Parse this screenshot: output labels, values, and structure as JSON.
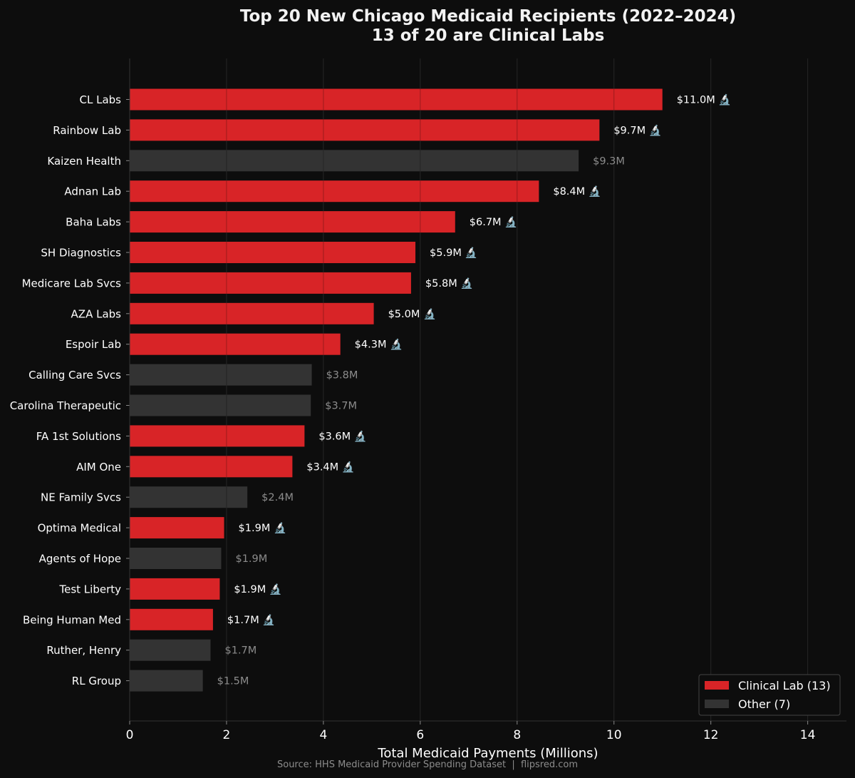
{
  "chart_data": {
    "type": "bar",
    "orientation": "horizontal",
    "title": [
      "Top 20 New Chicago Medicaid Recipients (2022–2024)",
      "13 of 20 are Clinical Labs"
    ],
    "xlabel": "Total Medicaid Payments (Millions)",
    "ylabel": "",
    "xlim": [
      0,
      14.8
    ],
    "xticks": [
      0,
      2,
      4,
      6,
      8,
      10,
      12,
      14
    ],
    "grid": "vertical",
    "source": "Source: HHS Medicaid Provider Spending Dataset  |  flipsred.com",
    "colors": {
      "clinical_lab": "#d82427",
      "other": "#333333",
      "lab_value_text": "#ffffff",
      "other_value_text": "#8c8c8c",
      "background": "#0d0d0d",
      "grid": "#262626",
      "spine": "#333333"
    },
    "legend": {
      "position": "bottom-right",
      "entries": [
        {
          "label": "Clinical Lab (13)",
          "group": "lab"
        },
        {
          "label": "Other (7)",
          "group": "other"
        }
      ]
    },
    "bars": [
      {
        "label": "CL Labs",
        "value": 11.0,
        "group": "lab",
        "value_label": "$11.0M 🔬"
      },
      {
        "label": "Rainbow Lab",
        "value": 9.7,
        "group": "lab",
        "value_label": "$9.7M 🔬"
      },
      {
        "label": "Kaizen Health",
        "value": 9.27,
        "group": "other",
        "value_label": "$9.3M"
      },
      {
        "label": "Adnan Lab",
        "value": 8.45,
        "group": "lab",
        "value_label": "$8.4M 🔬"
      },
      {
        "label": "Baha Labs",
        "value": 6.72,
        "group": "lab",
        "value_label": "$6.7M 🔬"
      },
      {
        "label": "SH Diagnostics",
        "value": 5.9,
        "group": "lab",
        "value_label": "$5.9M 🔬"
      },
      {
        "label": "Medicare Lab Svcs",
        "value": 5.81,
        "group": "lab",
        "value_label": "$5.8M 🔬"
      },
      {
        "label": "AZA Labs",
        "value": 5.04,
        "group": "lab",
        "value_label": "$5.0M 🔬"
      },
      {
        "label": "Espoir Lab",
        "value": 4.35,
        "group": "lab",
        "value_label": "$4.3M 🔬"
      },
      {
        "label": "Calling Care Svcs",
        "value": 3.76,
        "group": "other",
        "value_label": "$3.8M"
      },
      {
        "label": "Carolina Therapeutic",
        "value": 3.74,
        "group": "other",
        "value_label": "$3.7M"
      },
      {
        "label": "FA 1st Solutions",
        "value": 3.61,
        "group": "lab",
        "value_label": "$3.6M 🔬"
      },
      {
        "label": "AIM One",
        "value": 3.36,
        "group": "lab",
        "value_label": "$3.4M 🔬"
      },
      {
        "label": "NE Family Svcs",
        "value": 2.43,
        "group": "other",
        "value_label": "$2.4M"
      },
      {
        "label": "Optima Medical",
        "value": 1.95,
        "group": "lab",
        "value_label": "$1.9M 🔬"
      },
      {
        "label": "Agents of Hope",
        "value": 1.89,
        "group": "other",
        "value_label": "$1.9M"
      },
      {
        "label": "Test Liberty",
        "value": 1.86,
        "group": "lab",
        "value_label": "$1.9M 🔬"
      },
      {
        "label": "Being Human Med",
        "value": 1.72,
        "group": "lab",
        "value_label": "$1.7M 🔬"
      },
      {
        "label": "Ruther, Henry",
        "value": 1.67,
        "group": "other",
        "value_label": "$1.7M"
      },
      {
        "label": "RL Group",
        "value": 1.51,
        "group": "other",
        "value_label": "$1.5M"
      }
    ]
  }
}
